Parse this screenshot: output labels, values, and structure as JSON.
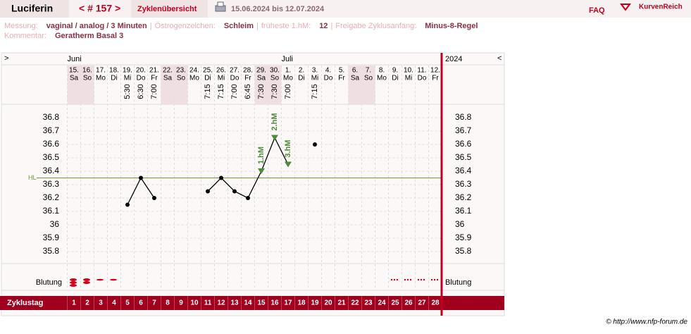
{
  "header": {
    "title": "Luciferin",
    "cycle": "< # 157 >",
    "overview": "Zyklenübersicht",
    "range": "15.06.2024 bis 12.07.2024",
    "faq": "FAQ",
    "brand": "KurvenReich"
  },
  "info": {
    "items": [
      {
        "label": "Messung:",
        "value": "vaginal / analog / 3 Minuten"
      },
      {
        "label": "Östrogenzeichen:",
        "value": "Schleim"
      },
      {
        "label": "früheste 1.hM:",
        "value": "12"
      },
      {
        "label": "Freigabe Zyklusanfang:",
        "value": "Minus-8-Regel"
      }
    ],
    "separator": "|",
    "comment_label": "Kommentar:",
    "comment": "Geratherm Basal 3"
  },
  "footer": "© http://www.nfp-forum.de",
  "chart_data": {
    "type": "line",
    "nav_left": ">",
    "nav_right": "<",
    "year": "2024",
    "month_labels": [
      "Juni",
      null,
      null,
      null,
      null,
      null,
      null,
      null,
      null,
      null,
      null,
      null,
      null,
      null,
      null,
      null,
      "Juli",
      null,
      null,
      null,
      null,
      null,
      null,
      null,
      null,
      null,
      null,
      null
    ],
    "categories": [
      "15.",
      "16.",
      "17.",
      "18.",
      "19.",
      "20.",
      "21.",
      "22.",
      "23.",
      "24.",
      "25.",
      "26.",
      "27.",
      "28.",
      "29.",
      "30.",
      "1.",
      "2.",
      "3.",
      "4.",
      "5.",
      "6.",
      "7.",
      "8.",
      "9.",
      "10.",
      "11.",
      "12."
    ],
    "weekdays": [
      "Sa",
      "So",
      "Mo",
      "Di",
      "Mi",
      "Do",
      "Fr",
      "Sa",
      "So",
      "Mo",
      "Di",
      "Mi",
      "Do",
      "Fr",
      "Sa",
      "So",
      "Mo",
      "Di",
      "Mi",
      "Do",
      "Fr",
      "Sa",
      "So",
      "Mo",
      "Di",
      "Mi",
      "Do",
      "Fr"
    ],
    "times": [
      null,
      null,
      null,
      null,
      "5:30",
      "6:30",
      "7:00",
      null,
      null,
      null,
      "7:15",
      "7:15",
      "7:00",
      "6:45",
      "7:30",
      "7:30",
      "7:00",
      null,
      "7:15",
      null,
      null,
      null,
      null,
      null,
      null,
      null,
      null,
      null
    ],
    "values": [
      null,
      null,
      null,
      null,
      36.15,
      36.35,
      36.2,
      null,
      null,
      null,
      36.25,
      36.35,
      36.25,
      36.2,
      36.4,
      36.65,
      36.45,
      null,
      36.6,
      null,
      null,
      null,
      null,
      null,
      null,
      null,
      null,
      null
    ],
    "color": "#000000",
    "hm_labels": [
      null,
      null,
      null,
      null,
      null,
      null,
      null,
      null,
      null,
      null,
      null,
      null,
      null,
      null,
      "1.hM",
      "2.hM",
      "3.hM",
      null,
      null,
      null,
      null,
      null,
      null,
      null,
      null,
      null,
      null,
      null
    ],
    "hm_color": "#4f8a3a",
    "hl": 36.35,
    "hl_label": "HL",
    "ylim": [
      35.7,
      36.9
    ],
    "yticks": [
      35.8,
      35.9,
      36,
      36.1,
      36.2,
      36.3,
      36.4,
      36.5,
      36.6,
      36.7,
      36.8
    ],
    "grid": true,
    "bleeding_label": "Blutung",
    "bleeding": [
      3,
      2,
      1,
      1,
      null,
      null,
      null,
      null,
      null,
      null,
      null,
      null,
      null,
      null,
      null,
      null,
      null,
      null,
      null,
      null,
      null,
      null,
      null,
      null,
      0.5,
      0.5,
      0.5,
      0.5
    ],
    "bleeding_color": "#d0021b",
    "cycle_day_label": "Zyklustag",
    "cycle_days": [
      1,
      2,
      3,
      4,
      5,
      6,
      7,
      8,
      9,
      10,
      11,
      12,
      13,
      14,
      15,
      16,
      17,
      18,
      19,
      20,
      21,
      22,
      23,
      24,
      25,
      26,
      27,
      28
    ]
  }
}
